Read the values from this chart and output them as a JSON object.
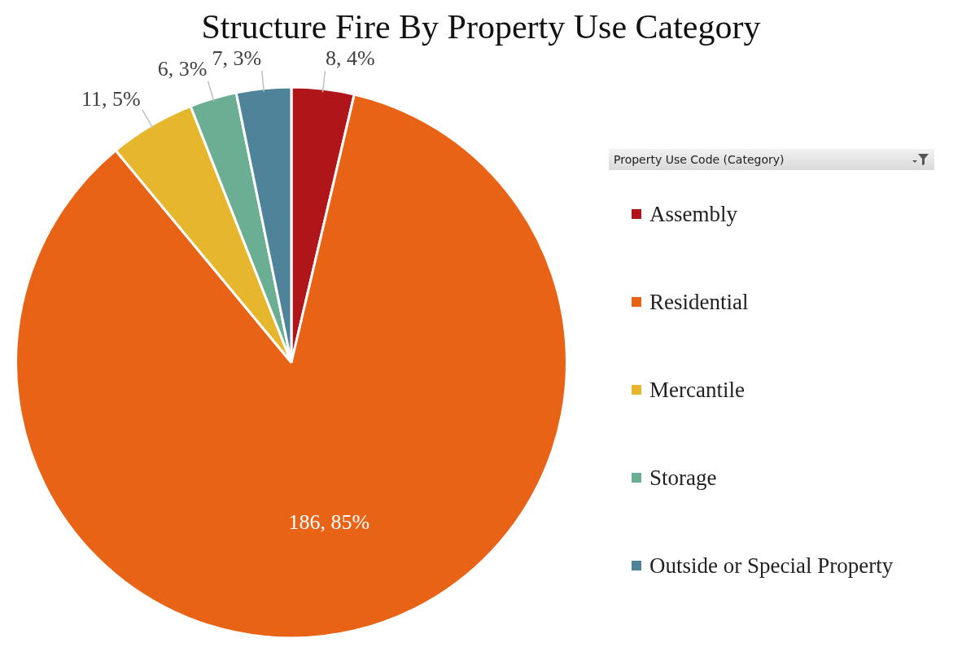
{
  "chart_data": {
    "type": "pie",
    "title": "Structure Fire By Property Use Category",
    "legend_title": "Property Use Code (Category)",
    "categories": [
      "Assembly",
      "Residential",
      "Mercantile",
      "Storage",
      "Outside or Special Property"
    ],
    "values": [
      8,
      186,
      11,
      6,
      7
    ],
    "colors": [
      "#b01519",
      "#e86315",
      "#e6b72c",
      "#6aae93",
      "#4f8399"
    ],
    "value_labels": [
      "8, 4%",
      "186, 85%",
      "11, 5%",
      "6, 3%",
      "7, 3%"
    ],
    "legend": "right"
  }
}
